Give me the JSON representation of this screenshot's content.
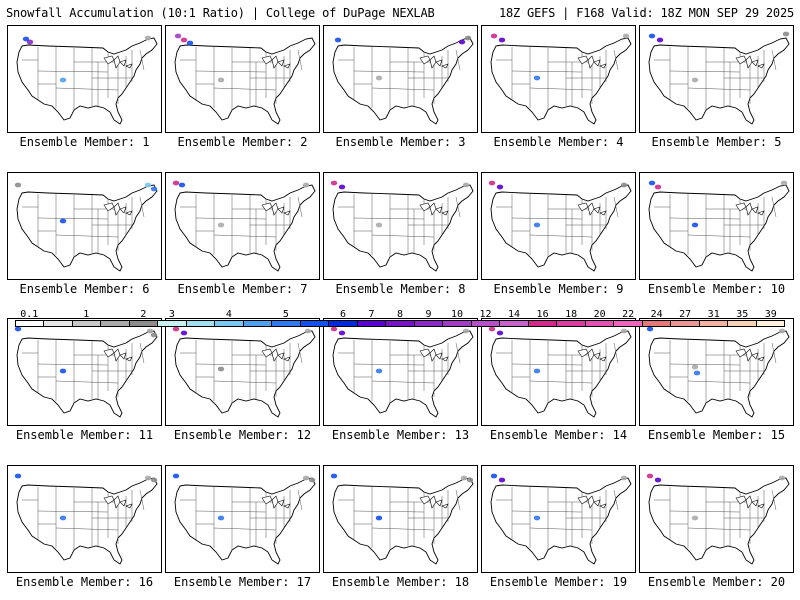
{
  "header": {
    "left": "Snowfall Accumulation (10:1 Ratio) | College of DuPage NEXLAB",
    "right": "18Z GEFS | F168 Valid: 18Z MON SEP 29 2025"
  },
  "colorbar": {
    "labels": [
      "0.1",
      "1",
      "2",
      "3",
      "4",
      "5",
      "6",
      "7",
      "8",
      "9",
      "10",
      "12",
      "14",
      "16",
      "18",
      "20",
      "22",
      "24",
      "27",
      "31",
      "35",
      "39"
    ],
    "colors": [
      "#ffffff",
      "#e6e6e6",
      "#c8c8c8",
      "#aaaaaa",
      "#8c8c8c",
      "#c8f0f0",
      "#a0e0f0",
      "#78c8f0",
      "#50a0f0",
      "#3278f0",
      "#1450f0",
      "#0028dc",
      "#5a00d2",
      "#7814c8",
      "#8c28c8",
      "#a03cc8",
      "#b450c8",
      "#c864c8",
      "#d2288c",
      "#dc3ca0",
      "#e650b4",
      "#f064be",
      "#e67878",
      "#ec9696",
      "#f2b4a0",
      "#f8d2b4",
      "#fff0dc"
    ]
  },
  "members": [
    {
      "label": "Ensemble Member: 1",
      "snow": [
        [
          18,
          13,
          "#1450f0"
        ],
        [
          22,
          16,
          "#8c28c8"
        ],
        [
          55,
          54,
          "#50a0f0"
        ],
        [
          140,
          12,
          "#aaaaaa"
        ]
      ]
    },
    {
      "label": "Ensemble Member: 2",
      "snow": [
        [
          12,
          10,
          "#a03cc8"
        ],
        [
          18,
          14,
          "#d2288c"
        ],
        [
          24,
          17,
          "#1450f0"
        ],
        [
          55,
          54,
          "#aaaaaa"
        ]
      ]
    },
    {
      "label": "Ensemble Member: 3",
      "snow": [
        [
          14,
          14,
          "#1450f0"
        ],
        [
          55,
          52,
          "#aaaaaa"
        ],
        [
          138,
          16,
          "#5a00d2"
        ],
        [
          144,
          12,
          "#8c8c8c"
        ]
      ]
    },
    {
      "label": "Ensemble Member: 4",
      "snow": [
        [
          12,
          10,
          "#d2288c"
        ],
        [
          20,
          14,
          "#5a00d2"
        ],
        [
          55,
          52,
          "#3278f0"
        ],
        [
          144,
          10,
          "#aaaaaa"
        ]
      ]
    },
    {
      "label": "Ensemble Member: 5",
      "snow": [
        [
          12,
          10,
          "#1450f0"
        ],
        [
          20,
          14,
          "#5a00d2"
        ],
        [
          55,
          54,
          "#aaaaaa"
        ],
        [
          146,
          8,
          "#8c8c8c"
        ]
      ]
    },
    {
      "label": "Ensemble Member: 6",
      "snow": [
        [
          10,
          12,
          "#8c8c8c"
        ],
        [
          55,
          48,
          "#1450f0"
        ],
        [
          140,
          12,
          "#78c8f0"
        ],
        [
          146,
          16,
          "#3278f0"
        ]
      ]
    },
    {
      "label": "Ensemble Member: 7",
      "snow": [
        [
          10,
          10,
          "#d2288c"
        ],
        [
          16,
          12,
          "#1450f0"
        ],
        [
          55,
          52,
          "#aaaaaa"
        ],
        [
          140,
          12,
          "#aaaaaa"
        ]
      ]
    },
    {
      "label": "Ensemble Member: 8",
      "snow": [
        [
          10,
          10,
          "#d2288c"
        ],
        [
          18,
          14,
          "#5a00d2"
        ],
        [
          55,
          52,
          "#aaaaaa"
        ],
        [
          142,
          12,
          "#aaaaaa"
        ]
      ]
    },
    {
      "label": "Ensemble Member: 9",
      "snow": [
        [
          10,
          10,
          "#d2288c"
        ],
        [
          18,
          14,
          "#5a00d2"
        ],
        [
          55,
          52,
          "#3278f0"
        ],
        [
          142,
          12,
          "#8c8c8c"
        ]
      ]
    },
    {
      "label": "Ensemble Member: 10",
      "snow": [
        [
          12,
          10,
          "#1450f0"
        ],
        [
          18,
          14,
          "#d2288c"
        ],
        [
          55,
          52,
          "#1450f0"
        ],
        [
          144,
          10,
          "#aaaaaa"
        ]
      ]
    },
    {
      "label": "Ensemble Member: 11",
      "snow": [
        [
          10,
          10,
          "#1450f0"
        ],
        [
          55,
          52,
          "#1450f0"
        ],
        [
          142,
          12,
          "#aaaaaa"
        ],
        [
          146,
          16,
          "#8c8c8c"
        ]
      ]
    },
    {
      "label": "Ensemble Member: 12",
      "snow": [
        [
          10,
          10,
          "#d2288c"
        ],
        [
          18,
          14,
          "#5a00d2"
        ],
        [
          55,
          50,
          "#8c8c8c"
        ],
        [
          142,
          12,
          "#aaaaaa"
        ]
      ]
    },
    {
      "label": "Ensemble Member: 13",
      "snow": [
        [
          10,
          10,
          "#d2288c"
        ],
        [
          18,
          14,
          "#5a00d2"
        ],
        [
          55,
          52,
          "#3278f0"
        ],
        [
          142,
          12,
          "#aaaaaa"
        ]
      ]
    },
    {
      "label": "Ensemble Member: 14",
      "snow": [
        [
          10,
          10,
          "#d2288c"
        ],
        [
          18,
          14,
          "#5a00d2"
        ],
        [
          55,
          52,
          "#3278f0"
        ],
        [
          142,
          12,
          "#aaaaaa"
        ]
      ]
    },
    {
      "label": "Ensemble Member: 15",
      "snow": [
        [
          10,
          10,
          "#1450f0"
        ],
        [
          55,
          48,
          "#aaaaaa"
        ],
        [
          57,
          54,
          "#3278f0"
        ],
        [
          142,
          12,
          "#aaaaaa"
        ]
      ]
    },
    {
      "label": "Ensemble Member: 16",
      "snow": [
        [
          10,
          10,
          "#1450f0"
        ],
        [
          55,
          52,
          "#3278f0"
        ],
        [
          140,
          12,
          "#aaaaaa"
        ],
        [
          146,
          14,
          "#8c8c8c"
        ]
      ]
    },
    {
      "label": "Ensemble Member: 17",
      "snow": [
        [
          10,
          10,
          "#1450f0"
        ],
        [
          55,
          52,
          "#3278f0"
        ],
        [
          140,
          12,
          "#aaaaaa"
        ],
        [
          146,
          14,
          "#8c8c8c"
        ]
      ]
    },
    {
      "label": "Ensemble Member: 18",
      "snow": [
        [
          10,
          10,
          "#1450f0"
        ],
        [
          55,
          52,
          "#1450f0"
        ],
        [
          140,
          12,
          "#aaaaaa"
        ],
        [
          146,
          14,
          "#8c8c8c"
        ]
      ]
    },
    {
      "label": "Ensemble Member: 19",
      "snow": [
        [
          12,
          10,
          "#1450f0"
        ],
        [
          20,
          14,
          "#5a00d2"
        ],
        [
          55,
          52,
          "#3278f0"
        ],
        [
          142,
          12,
          "#aaaaaa"
        ]
      ]
    },
    {
      "label": "Ensemble Member: 20",
      "snow": [
        [
          10,
          10,
          "#d2288c"
        ],
        [
          18,
          14,
          "#5a00d2"
        ],
        [
          55,
          52,
          "#aaaaaa"
        ],
        [
          142,
          12,
          "#aaaaaa"
        ]
      ]
    }
  ]
}
